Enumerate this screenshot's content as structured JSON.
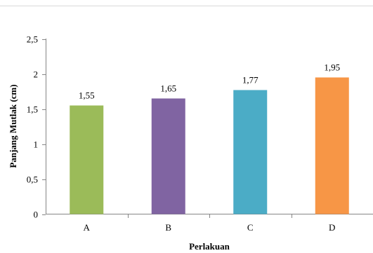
{
  "chart_data": {
    "type": "bar",
    "title": "",
    "xlabel": "Perlakuan",
    "ylabel": "Panjang Mutlak (cm)",
    "categories": [
      "A",
      "B",
      "C",
      "D"
    ],
    "values": [
      1.55,
      1.65,
      1.77,
      1.95
    ],
    "data_labels": [
      "1,55",
      "1,65",
      "1,77",
      "1,95"
    ],
    "bar_colors": [
      "#9bbb59",
      "#8064a2",
      "#4bacc6",
      "#f79646"
    ],
    "ylim": [
      0,
      2.5
    ],
    "yticks": [
      0,
      0.5,
      1,
      1.5,
      2,
      2.5
    ],
    "ytick_labels": [
      "0",
      "0,5",
      "1",
      "1,5",
      "2",
      "2,5"
    ],
    "grid": false,
    "legend": "none"
  }
}
